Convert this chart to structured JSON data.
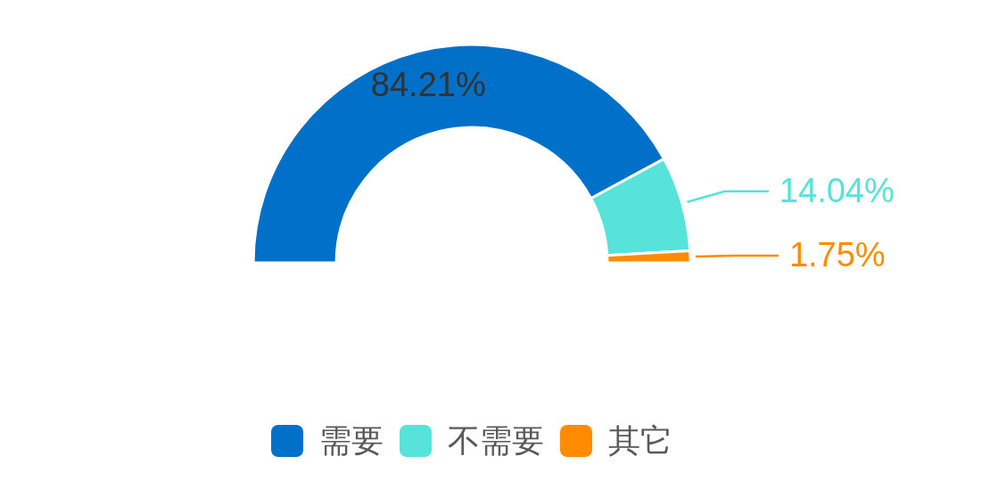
{
  "chart_data": {
    "type": "donut",
    "categories": [
      "需要",
      "不需要",
      "其它"
    ],
    "values": [
      84.21,
      14.04,
      1.75
    ],
    "colors": [
      "#0070c8",
      "#57e3d9",
      "#ff8c00"
    ],
    "value_labels": [
      "84.21%",
      "14.04%",
      "1.75%"
    ],
    "legend": "bottom"
  }
}
